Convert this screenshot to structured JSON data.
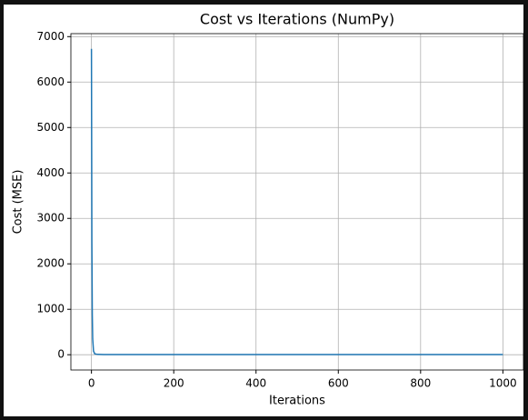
{
  "chart_data": {
    "type": "line",
    "title": "Cost vs Iterations (NumPy)",
    "x_label": "Iterations",
    "y_label": "Cost (MSE)",
    "x": [
      0,
      1,
      2,
      3,
      5,
      8,
      15,
      30,
      100,
      1000
    ],
    "series": [
      {
        "name": "Cost",
        "color": "#1f77b4",
        "values": [
          6730,
          2500,
          900,
          350,
          80,
          20,
          8,
          5,
          4,
          4
        ]
      }
    ],
    "xlim": [
      -50,
      1050
    ],
    "xticks": [
      0,
      200,
      400,
      600,
      800,
      1000
    ],
    "ylim": [
      -336,
      7066
    ],
    "yticks": [
      0,
      1000,
      2000,
      3000,
      4000,
      5000,
      6000,
      7000
    ],
    "grid": true
  }
}
